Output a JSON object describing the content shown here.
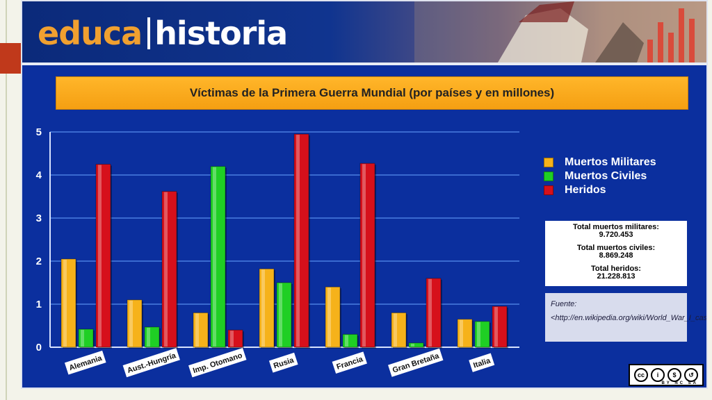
{
  "brand": {
    "part1": "educa",
    "part2": "historia"
  },
  "chart_data": {
    "type": "bar",
    "title": "Víctimas de la Primera Guerra Mundial (por países y en millones)",
    "categories": [
      "Alemania",
      "Aust.-Hungría",
      "Imp. Otomano",
      "Rusia",
      "Francia",
      "Gran Bretaña",
      "Italia"
    ],
    "series": [
      {
        "name": "Muertos Militares",
        "color": "#f6b21a",
        "values": [
          2.05,
          1.1,
          0.8,
          1.82,
          1.4,
          0.8,
          0.65
        ]
      },
      {
        "name": "Muertos Civiles",
        "color": "#1fcf24",
        "values": [
          0.42,
          0.47,
          4.2,
          1.5,
          0.3,
          0.1,
          0.6
        ]
      },
      {
        "name": "Heridos",
        "color": "#d6101b",
        "values": [
          4.25,
          3.62,
          0.4,
          4.95,
          4.27,
          1.6,
          0.95
        ]
      }
    ],
    "ylim": [
      0,
      5
    ],
    "yticks": [
      "0",
      "1",
      "2",
      "3",
      "4",
      "5"
    ],
    "grid": true,
    "legend_position": "right"
  },
  "totals": {
    "military_label": "Total muertos militares:",
    "military_value": "9.720.453",
    "civil_label": "Total muertos civiles:",
    "civil_value": "8.869.248",
    "wounded_label": "Total heridos:",
    "wounded_value": "21.228.813"
  },
  "source": {
    "label": "Fuente:",
    "url": "<http://en.wikipedia.org/wiki/World_War_I_casualties>"
  },
  "license": {
    "text": "BY NC SA"
  }
}
